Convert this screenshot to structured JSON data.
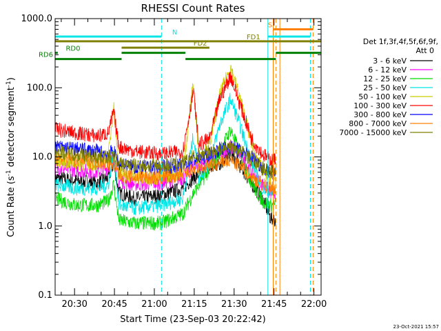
{
  "chart_data": {
    "type": "line",
    "title": "RHESSI Count Rates",
    "xlabel": "Start Time (23-Sep-03 20:22:42)",
    "ylabel_main": "Count Rate (s",
    "ylabel_sup1": "-1",
    "ylabel_mid": " detector segment",
    "ylabel_sup2": "-1",
    "ylabel_end": ")",
    "y_scale": "log",
    "ylim": [
      0.1,
      1000
    ],
    "xlim": [
      "20:22:42",
      "22:02:42"
    ],
    "y_ticks": [
      {
        "value": 0.1,
        "label": "0.1"
      },
      {
        "value": 1,
        "label": "1.0"
      },
      {
        "value": 10,
        "label": "10.0"
      },
      {
        "value": 100,
        "label": "100.0"
      },
      {
        "value": 1000,
        "label": "1000.0"
      }
    ],
    "x_ticks": [
      {
        "minutes": 7.3,
        "label": "20:30"
      },
      {
        "minutes": 22.3,
        "label": "20:45"
      },
      {
        "minutes": 37.3,
        "label": "21:00"
      },
      {
        "minutes": 52.3,
        "label": "21:15"
      },
      {
        "minutes": 67.3,
        "label": "21:30"
      },
      {
        "minutes": 82.3,
        "label": "21:45"
      },
      {
        "minutes": 97.3,
        "label": "22:00"
      }
    ],
    "legend": {
      "position": "right",
      "header_line1": "Det 1f,3f,4f,5f,6f,9f,",
      "header_line2": "Att 0",
      "entries": [
        {
          "label": "3 - 6 keV",
          "color": "#000000"
        },
        {
          "label": "6 - 12 keV",
          "color": "#ff00ff"
        },
        {
          "label": "12 - 25 keV",
          "color": "#00dd00"
        },
        {
          "label": "25 - 50 keV",
          "color": "#00e5e5"
        },
        {
          "label": "50 - 100 keV",
          "color": "#cccc00"
        },
        {
          "label": "100 - 300 keV",
          "color": "#ff0000"
        },
        {
          "label": "300 - 800 keV",
          "color": "#0000ff"
        },
        {
          "label": "800 - 7000 keV",
          "color": "#ff8000"
        },
        {
          "label": "7000 - 15000 keV",
          "color": "#808000"
        }
      ]
    },
    "series": [
      {
        "name": "3 - 6 keV",
        "color": "#000000",
        "points": [
          [
            0,
            5
          ],
          [
            8,
            4.5
          ],
          [
            16,
            4.2
          ],
          [
            20,
            5
          ],
          [
            22,
            8
          ],
          [
            24,
            3
          ],
          [
            30,
            2.5
          ],
          [
            40,
            2.8
          ],
          [
            48,
            3.5
          ],
          [
            52,
            5
          ],
          [
            56,
            6
          ],
          [
            62,
            8
          ],
          [
            66,
            11
          ],
          [
            70,
            7
          ],
          [
            74,
            4
          ],
          [
            78,
            2.5
          ],
          [
            81,
            1.3
          ],
          [
            83,
            1.2
          ]
        ]
      },
      {
        "name": "6 - 12 keV",
        "color": "#ff00ff",
        "points": [
          [
            0,
            7
          ],
          [
            8,
            6.5
          ],
          [
            16,
            6
          ],
          [
            20,
            7
          ],
          [
            22,
            10
          ],
          [
            24,
            4.5
          ],
          [
            30,
            4
          ],
          [
            40,
            4.2
          ],
          [
            48,
            5
          ],
          [
            52,
            7
          ],
          [
            56,
            8
          ],
          [
            62,
            11
          ],
          [
            66,
            14
          ],
          [
            70,
            10
          ],
          [
            74,
            6
          ],
          [
            78,
            4
          ],
          [
            81,
            3
          ],
          [
            83,
            3
          ]
        ]
      },
      {
        "name": "12 - 25 keV",
        "color": "#00dd00",
        "points": [
          [
            0,
            2.5
          ],
          [
            8,
            2
          ],
          [
            16,
            2
          ],
          [
            20,
            2.3
          ],
          [
            22,
            4
          ],
          [
            24,
            1.2
          ],
          [
            30,
            1.1
          ],
          [
            40,
            1.1
          ],
          [
            48,
            1.5
          ],
          [
            52,
            3
          ],
          [
            56,
            5
          ],
          [
            62,
            12
          ],
          [
            66,
            25
          ],
          [
            70,
            10
          ],
          [
            74,
            4
          ],
          [
            78,
            2.3
          ],
          [
            81,
            2
          ],
          [
            83,
            2
          ]
        ]
      },
      {
        "name": "25 - 50 keV",
        "color": "#00e5e5",
        "points": [
          [
            0,
            4
          ],
          [
            8,
            3.5
          ],
          [
            16,
            3.5
          ],
          [
            20,
            4
          ],
          [
            22,
            12
          ],
          [
            24,
            2
          ],
          [
            30,
            1.8
          ],
          [
            40,
            2
          ],
          [
            48,
            2.5
          ],
          [
            52,
            20
          ],
          [
            54,
            5
          ],
          [
            58,
            8
          ],
          [
            62,
            30
          ],
          [
            66,
            70
          ],
          [
            70,
            25
          ],
          [
            74,
            8
          ],
          [
            78,
            3.5
          ],
          [
            81,
            3
          ],
          [
            83,
            3
          ]
        ]
      },
      {
        "name": "50 - 100 keV",
        "color": "#cccc00",
        "points": [
          [
            0,
            9
          ],
          [
            8,
            8
          ],
          [
            16,
            8
          ],
          [
            20,
            10
          ],
          [
            22,
            55
          ],
          [
            24,
            6
          ],
          [
            30,
            5
          ],
          [
            40,
            5
          ],
          [
            48,
            6
          ],
          [
            52,
            120
          ],
          [
            54,
            10
          ],
          [
            58,
            15
          ],
          [
            62,
            80
          ],
          [
            66,
            200
          ],
          [
            70,
            60
          ],
          [
            74,
            15
          ],
          [
            78,
            6
          ],
          [
            81,
            5
          ],
          [
            83,
            5
          ]
        ]
      },
      {
        "name": "100 - 300 keV",
        "color": "#ff0000",
        "points": [
          [
            0,
            25
          ],
          [
            8,
            22
          ],
          [
            16,
            20
          ],
          [
            20,
            22
          ],
          [
            22,
            45
          ],
          [
            24,
            14
          ],
          [
            30,
            12
          ],
          [
            40,
            11
          ],
          [
            48,
            12
          ],
          [
            52,
            90
          ],
          [
            54,
            15
          ],
          [
            58,
            18
          ],
          [
            62,
            70
          ],
          [
            66,
            150
          ],
          [
            70,
            50
          ],
          [
            74,
            18
          ],
          [
            78,
            11
          ],
          [
            81,
            9
          ],
          [
            83,
            9
          ]
        ]
      },
      {
        "name": "300 - 800 keV",
        "color": "#0000ff",
        "points": [
          [
            0,
            14
          ],
          [
            8,
            13
          ],
          [
            16,
            12
          ],
          [
            20,
            11
          ],
          [
            22,
            12
          ],
          [
            24,
            8
          ],
          [
            30,
            7
          ],
          [
            40,
            7
          ],
          [
            48,
            7.5
          ],
          [
            52,
            9
          ],
          [
            56,
            10
          ],
          [
            62,
            13
          ],
          [
            66,
            14
          ],
          [
            70,
            12
          ],
          [
            74,
            10
          ],
          [
            78,
            7
          ],
          [
            81,
            6
          ],
          [
            83,
            6
          ]
        ]
      },
      {
        "name": "800 - 7000 keV",
        "color": "#ff8000",
        "points": [
          [
            0,
            10
          ],
          [
            8,
            9
          ],
          [
            16,
            8.5
          ],
          [
            20,
            8
          ],
          [
            22,
            8
          ],
          [
            24,
            5.5
          ],
          [
            30,
            5
          ],
          [
            40,
            5
          ],
          [
            48,
            5.5
          ],
          [
            52,
            6.5
          ],
          [
            56,
            7
          ],
          [
            62,
            8
          ],
          [
            66,
            9
          ],
          [
            70,
            7
          ],
          [
            74,
            5
          ],
          [
            78,
            4
          ],
          [
            81,
            3.5
          ],
          [
            83,
            3.5
          ]
        ]
      },
      {
        "name": "7000 - 15000 keV",
        "color": "#808000",
        "points": [
          [
            0,
            12
          ],
          [
            8,
            11
          ],
          [
            16,
            10
          ],
          [
            20,
            10
          ],
          [
            22,
            10
          ],
          [
            24,
            8
          ],
          [
            30,
            7.5
          ],
          [
            40,
            7.5
          ],
          [
            48,
            8
          ],
          [
            52,
            10
          ],
          [
            56,
            11
          ],
          [
            62,
            13
          ],
          [
            66,
            14
          ],
          [
            70,
            12
          ],
          [
            74,
            9
          ],
          [
            78,
            7
          ],
          [
            81,
            6
          ],
          [
            83,
            6
          ]
        ]
      }
    ],
    "state_bars": [
      {
        "label": "N",
        "color": "#00e5e5",
        "value": 550,
        "label_minutes": 44,
        "segments": [
          [
            0,
            40
          ],
          [
            80,
            96
          ]
        ]
      },
      {
        "label": "S",
        "color": "#ff8000",
        "value": 700,
        "label_minutes": 80,
        "segments": [
          [
            82,
            97
          ]
        ]
      },
      {
        "label": "FD1",
        "color": "#808000",
        "value": 470,
        "label_minutes": 72,
        "segments": [
          [
            0,
            58
          ],
          [
            58,
            100
          ]
        ]
      },
      {
        "label": "FD2",
        "color": "#808000",
        "value": 380,
        "label_minutes": 52,
        "segments": [
          [
            25,
            58
          ]
        ]
      },
      {
        "label": "RD0",
        "color": "#008000",
        "value": 320,
        "label_minutes": 4,
        "segments": [
          [
            0,
            1
          ],
          [
            25,
            49
          ],
          [
            83,
            100
          ]
        ]
      },
      {
        "label": "RD6",
        "color": "#008000",
        "value": 260,
        "label_minutes": 0,
        "segments": [
          [
            0,
            25
          ],
          [
            49,
            83
          ]
        ]
      }
    ],
    "vertical_lines": [
      {
        "minutes": 0,
        "color": "#00e5e5",
        "style": "solid"
      },
      {
        "minutes": 40,
        "color": "#00e5e5",
        "style": "dashed"
      },
      {
        "minutes": 80,
        "color": "#00e5e5",
        "style": "solid"
      },
      {
        "minutes": 96,
        "color": "#00e5e5",
        "style": "dashed"
      },
      {
        "minutes": 82,
        "color": "#ff8000",
        "style": "solid"
      },
      {
        "minutes": 83,
        "color": "#ff8000",
        "style": "dashed"
      },
      {
        "minutes": 84.5,
        "color": "#ff8000",
        "style": "solid"
      },
      {
        "minutes": 97,
        "color": "#ff8000",
        "style": "dashed"
      }
    ],
    "timestamp": "23-Oct-2021 15:57"
  }
}
